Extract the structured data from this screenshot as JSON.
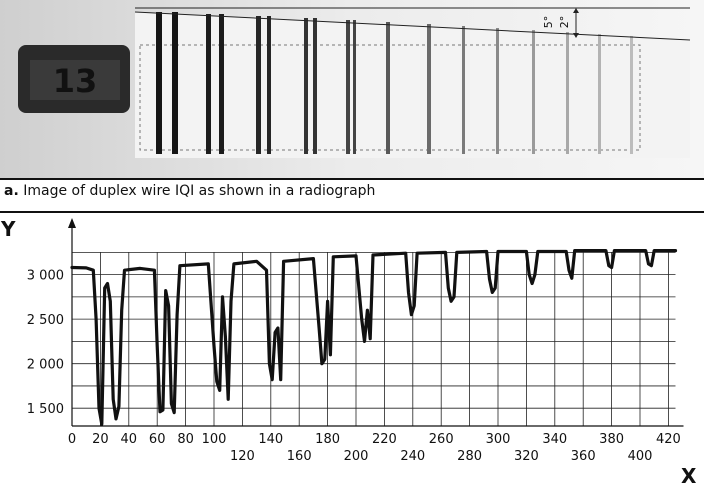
{
  "radiograph": {
    "angle_label_1": "5°",
    "angle_label_2": "2°",
    "marker_text": "13"
  },
  "caption": {
    "letter": "a.",
    "text": "Image of duplex wire IQI as shown in a radiograph"
  },
  "chart_data": {
    "type": "line",
    "title": "",
    "xlabel": "X",
    "ylabel": "Y",
    "xlim": [
      0,
      425
    ],
    "ylim": [
      1300,
      3400
    ],
    "x_ticks_top": [
      "0",
      "20",
      "40",
      "60",
      "80",
      "100",
      "140",
      "180",
      "220",
      "260",
      "300",
      "340",
      "380",
      "420"
    ],
    "x_ticks_bottom": [
      "120",
      "160",
      "200",
      "240",
      "280",
      "320",
      "360",
      "400"
    ],
    "y_ticks": [
      "1 500",
      "2 000",
      "2 500",
      "3 000"
    ],
    "grid": true,
    "series": [
      {
        "values": [
          [
            0,
            3080
          ],
          [
            10,
            3075
          ],
          [
            15,
            3050
          ],
          [
            17,
            2500
          ],
          [
            19,
            1500
          ],
          [
            21,
            1320
          ],
          [
            23,
            2850
          ],
          [
            25,
            2900
          ],
          [
            27,
            2700
          ],
          [
            29,
            1600
          ],
          [
            31,
            1380
          ],
          [
            33,
            1520
          ],
          [
            35,
            2600
          ],
          [
            37,
            3050
          ],
          [
            48,
            3070
          ],
          [
            58,
            3050
          ],
          [
            60,
            2200
          ],
          [
            62,
            1460
          ],
          [
            64,
            1480
          ],
          [
            66,
            2820
          ],
          [
            68,
            2650
          ],
          [
            70,
            1550
          ],
          [
            72,
            1450
          ],
          [
            74,
            2550
          ],
          [
            76,
            3100
          ],
          [
            96,
            3120
          ],
          [
            100,
            2200
          ],
          [
            102,
            1800
          ],
          [
            104,
            1700
          ],
          [
            106,
            2750
          ],
          [
            108,
            2300
          ],
          [
            110,
            1600
          ],
          [
            112,
            2700
          ],
          [
            114,
            3120
          ],
          [
            130,
            3150
          ],
          [
            137,
            3050
          ],
          [
            139,
            2000
          ],
          [
            141,
            1820
          ],
          [
            143,
            2350
          ],
          [
            145,
            2400
          ],
          [
            147,
            1820
          ],
          [
            149,
            3150
          ],
          [
            170,
            3180
          ],
          [
            174,
            2400
          ],
          [
            176,
            2000
          ],
          [
            178,
            2050
          ],
          [
            180,
            2700
          ],
          [
            182,
            2100
          ],
          [
            184,
            3200
          ],
          [
            200,
            3210
          ],
          [
            204,
            2500
          ],
          [
            206,
            2250
          ],
          [
            208,
            2600
          ],
          [
            210,
            2280
          ],
          [
            212,
            3220
          ],
          [
            235,
            3240
          ],
          [
            237,
            2800
          ],
          [
            239,
            2550
          ],
          [
            241,
            2650
          ],
          [
            243,
            3240
          ],
          [
            263,
            3250
          ],
          [
            265,
            2850
          ],
          [
            267,
            2700
          ],
          [
            269,
            2750
          ],
          [
            271,
            3250
          ],
          [
            292,
            3260
          ],
          [
            294,
            2950
          ],
          [
            296,
            2800
          ],
          [
            298,
            2850
          ],
          [
            300,
            3260
          ],
          [
            320,
            3260
          ],
          [
            322,
            3000
          ],
          [
            324,
            2900
          ],
          [
            326,
            3000
          ],
          [
            328,
            3260
          ],
          [
            348,
            3260
          ],
          [
            350,
            3050
          ],
          [
            352,
            2960
          ],
          [
            354,
            3270
          ],
          [
            376,
            3270
          ],
          [
            378,
            3100
          ],
          [
            380,
            3080
          ],
          [
            382,
            3270
          ],
          [
            404,
            3270
          ],
          [
            406,
            3120
          ],
          [
            408,
            3100
          ],
          [
            410,
            3270
          ],
          [
            425,
            3270
          ]
        ]
      }
    ]
  }
}
